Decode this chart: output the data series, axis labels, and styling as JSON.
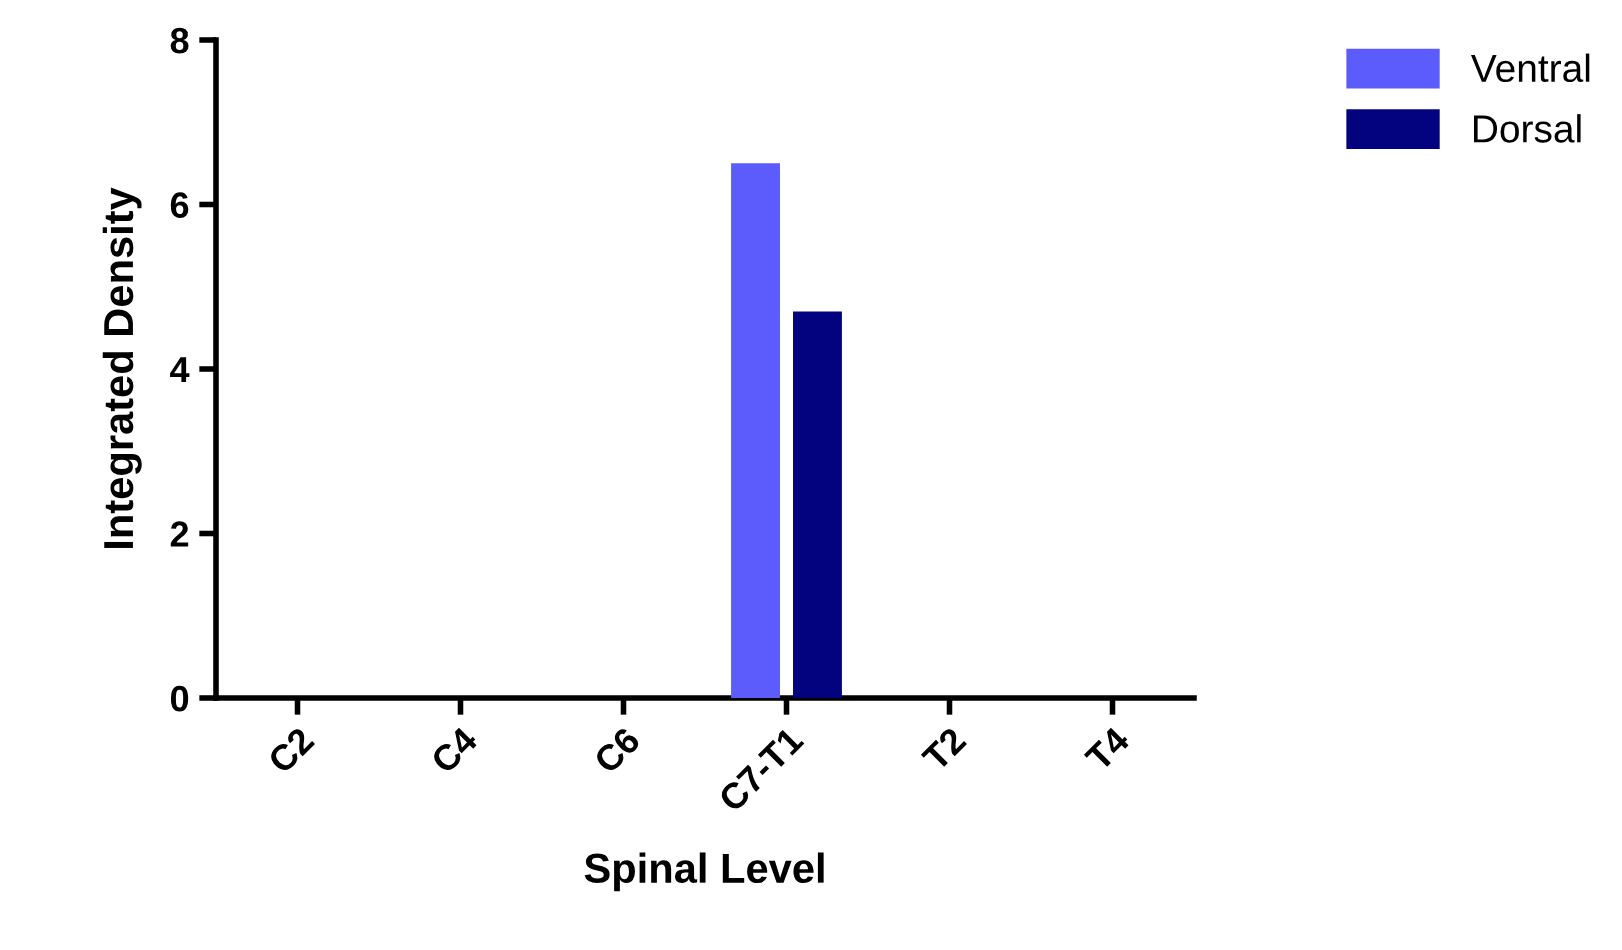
{
  "chart_data": {
    "type": "bar",
    "xlabel": "Spinal Level",
    "ylabel": "Integrated Density",
    "categories": [
      "C2",
      "C4",
      "C6",
      "C7-T1",
      "T2",
      "T4"
    ],
    "series": [
      {
        "name": "Ventral",
        "color": "#5c5cfd",
        "values": [
          0,
          0,
          0,
          6.5,
          0,
          0
        ]
      },
      {
        "name": "Dorsal",
        "color": "#030380",
        "values": [
          0,
          0,
          0,
          4.7,
          0,
          0
        ]
      }
    ],
    "ylim": [
      0,
      8
    ],
    "yticks": [
      0,
      2,
      4,
      6,
      8
    ],
    "grid": false,
    "legend": "top right"
  }
}
